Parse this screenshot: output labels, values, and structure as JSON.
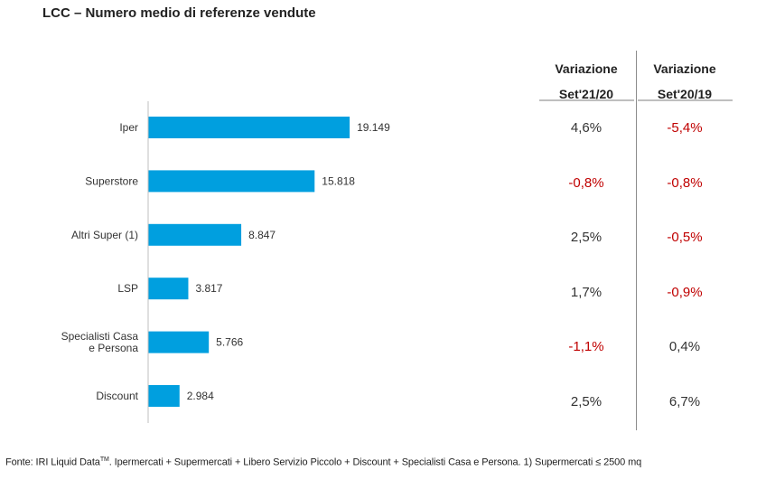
{
  "title": "LCC – Numero medio di referenze vendute",
  "chart_data": {
    "type": "bar",
    "orientation": "horizontal",
    "title": "LCC – Numero medio di referenze vendute",
    "categories": [
      [
        "Iper"
      ],
      [
        "Superstore"
      ],
      [
        "Altri Super (1)"
      ],
      [
        "LSP"
      ],
      [
        "Specialisti Casa",
        "e Persona"
      ],
      [
        "Discount"
      ]
    ],
    "values": [
      19149,
      15818,
      8847,
      3817,
      5766,
      2984
    ],
    "data_labels": [
      "19.149",
      "15.818",
      "8.847",
      "3.817",
      "5.766",
      "2.984"
    ],
    "bar_color": "#009fdf",
    "xlim": [
      0,
      40000
    ],
    "grid": false,
    "legend": "none"
  },
  "table": {
    "headers": [
      {
        "line1": "Variazione",
        "line2": "Set'21/20"
      },
      {
        "line1": "Variazione",
        "line2": "Set'20/19"
      }
    ],
    "rows": [
      {
        "c1": "4,6%",
        "c2": "-5,4%"
      },
      {
        "c1": "-0,8%",
        "c2": "-0,8%"
      },
      {
        "c1": "2,5%",
        "c2": "-0,5%"
      },
      {
        "c1": "1,7%",
        "c2": "-0,9%"
      },
      {
        "c1": "-1,1%",
        "c2": "0,4%"
      },
      {
        "c1": "2,5%",
        "c2": "6,7%"
      }
    ],
    "negative_color": "#c00000",
    "positive_color": "#333333"
  },
  "footer": {
    "prefix": "Fonte: IRI Liquid Data",
    "tm": "TM",
    "suffix": ".  Ipermercati + Supermercati + Libero Servizio Piccolo + Discount + Specialisti Casa e Persona. 1) Supermercati ≤ 2500 mq"
  }
}
